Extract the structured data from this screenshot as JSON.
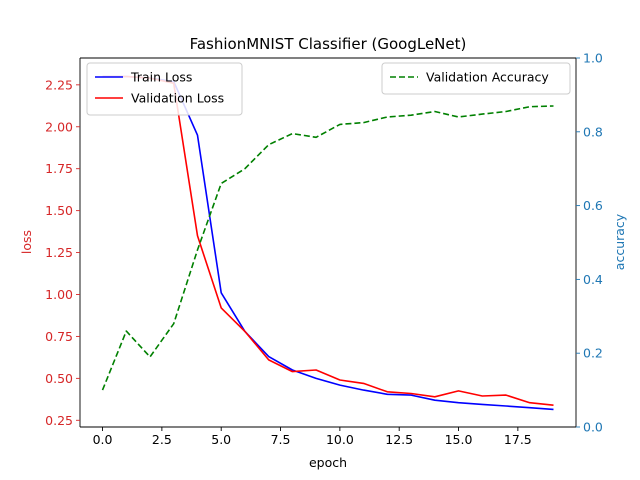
{
  "chart_data": {
    "type": "line",
    "title": "FashionMNIST Classifier (GoogLeNet)",
    "xlabel": "epoch",
    "ylabel_left": "loss",
    "ylabel_right": "accuracy",
    "x": [
      0,
      1,
      2,
      3,
      4,
      5,
      6,
      7,
      8,
      9,
      10,
      11,
      12,
      13,
      14,
      15,
      16,
      17,
      18,
      19
    ],
    "xlim": [
      -0.95,
      19.95
    ],
    "ylim_left": [
      0.21,
      2.41
    ],
    "ylim_right": [
      0.0,
      1.0
    ],
    "x_ticks": [
      "0.0",
      "2.5",
      "5.0",
      "7.5",
      "10.0",
      "12.5",
      "15.0",
      "17.5"
    ],
    "x_tick_values": [
      0,
      2.5,
      5,
      7.5,
      10,
      12.5,
      15,
      17.5
    ],
    "y_left_ticks": [
      "0.25",
      "0.50",
      "0.75",
      "1.00",
      "1.25",
      "1.50",
      "1.75",
      "2.00",
      "2.25"
    ],
    "y_left_tick_values": [
      0.25,
      0.5,
      0.75,
      1.0,
      1.25,
      1.5,
      1.75,
      2.0,
      2.25
    ],
    "y_right_ticks": [
      "0.0",
      "0.2",
      "0.4",
      "0.6",
      "0.8",
      "1.0"
    ],
    "y_right_tick_values": [
      0.0,
      0.2,
      0.4,
      0.6,
      0.8,
      1.0
    ],
    "series": [
      {
        "name": "Train Loss",
        "axis": "left",
        "color": "#0000ff",
        "dash": "solid",
        "values": [
          2.3,
          2.3,
          2.29,
          2.27,
          1.95,
          1.01,
          0.78,
          0.63,
          0.55,
          0.5,
          0.46,
          0.43,
          0.405,
          0.4,
          0.37,
          0.355,
          0.345,
          0.335,
          0.325,
          0.315
        ]
      },
      {
        "name": "Validation Loss",
        "axis": "left",
        "color": "#ff0000",
        "dash": "solid",
        "values": [
          2.3,
          2.3,
          2.29,
          2.26,
          1.35,
          0.92,
          0.78,
          0.61,
          0.54,
          0.55,
          0.49,
          0.47,
          0.42,
          0.41,
          0.39,
          0.425,
          0.395,
          0.4,
          0.355,
          0.34
        ]
      },
      {
        "name": "Validation Accuracy",
        "axis": "right",
        "color": "#008000",
        "dash": "dashed",
        "values": [
          0.1,
          0.26,
          0.19,
          0.28,
          0.48,
          0.66,
          0.7,
          0.765,
          0.795,
          0.785,
          0.82,
          0.825,
          0.84,
          0.845,
          0.855,
          0.84,
          0.848,
          0.855,
          0.868,
          0.87
        ]
      }
    ],
    "legend_left": "upper left",
    "legend_right": "upper right",
    "grid": false,
    "left_axis_color": "#d62728",
    "right_axis_color": "#1f77b4"
  }
}
